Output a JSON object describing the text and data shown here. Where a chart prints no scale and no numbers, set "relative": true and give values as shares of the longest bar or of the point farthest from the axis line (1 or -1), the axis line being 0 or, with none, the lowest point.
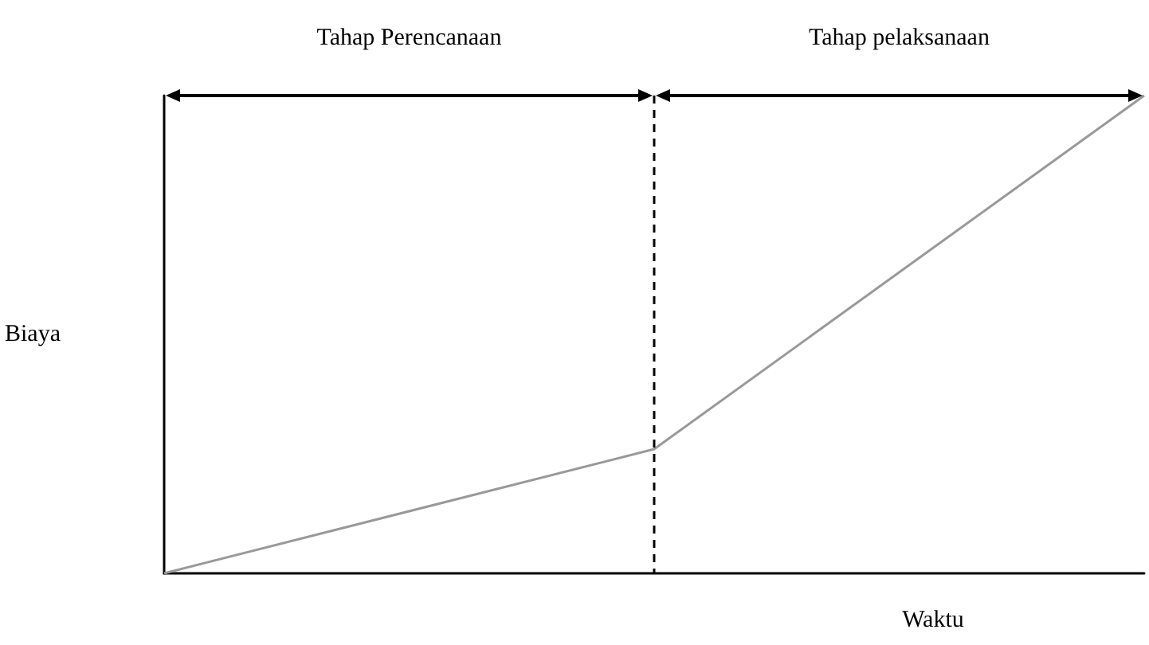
{
  "chart_data": {
    "type": "line",
    "xlabel": "Waktu",
    "ylabel": "Biaya",
    "relative": true,
    "categories": [
      null,
      null,
      null
    ],
    "series": [
      {
        "color": "#999999",
        "values": [
          0,
          0.26,
          1
        ]
      }
    ],
    "annotations": [
      "Tahap Perencanaan",
      "Tahap pelaksanaan"
    ],
    "marker": "none",
    "grid": false
  }
}
